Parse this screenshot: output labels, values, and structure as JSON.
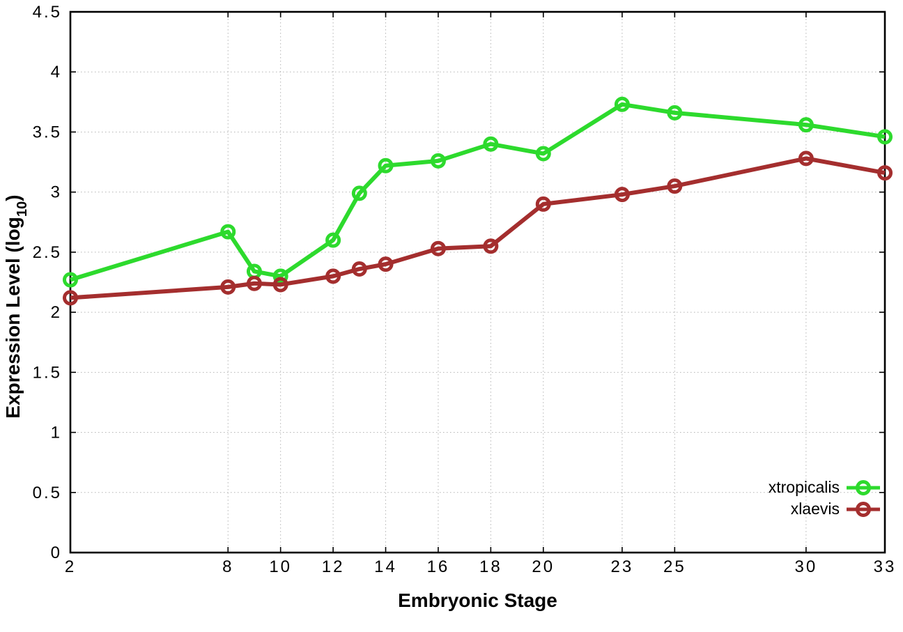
{
  "chart_data": {
    "type": "line",
    "title": "",
    "xlabel": "Embryonic Stage",
    "ylabel_prefix": "Expression Level (log",
    "ylabel_sub": "10",
    "ylabel_suffix": ")",
    "xlim": [
      2,
      33
    ],
    "ylim": [
      0,
      4.5
    ],
    "grid": true,
    "legend_position": "inside-bottom-right",
    "x": [
      2,
      8,
      9,
      10,
      12,
      13,
      14,
      16,
      18,
      20,
      23,
      25,
      30,
      33
    ],
    "xticks": {
      "values": [
        2,
        8,
        10,
        12,
        14,
        16,
        18,
        20,
        23,
        25,
        30,
        33
      ],
      "labels": [
        "2",
        "8",
        "10",
        "12",
        "14",
        "16",
        "18",
        "20",
        "23",
        "25",
        "30",
        "33"
      ]
    },
    "yticks": {
      "values": [
        0,
        0.5,
        1,
        1.5,
        2,
        2.5,
        3,
        3.5,
        4,
        4.5
      ],
      "labels": [
        "0",
        "0.5",
        "1",
        "1.5",
        "2",
        "2.5",
        "3",
        "3.5",
        "4",
        "4.5"
      ]
    },
    "series": [
      {
        "name": "xtropicalis",
        "color": "#2dda2d",
        "values": [
          2.27,
          2.67,
          2.34,
          2.3,
          2.6,
          2.99,
          3.22,
          3.26,
          3.4,
          3.32,
          3.73,
          3.66,
          3.56,
          3.46
        ]
      },
      {
        "name": "xlaevis",
        "color": "#a42e2e",
        "values": [
          2.12,
          2.21,
          2.24,
          2.23,
          2.3,
          2.36,
          2.4,
          2.53,
          2.55,
          2.9,
          2.98,
          3.05,
          3.28,
          3.16
        ]
      }
    ],
    "grid_color": "#b4b4b4",
    "border_color": "#000000"
  }
}
